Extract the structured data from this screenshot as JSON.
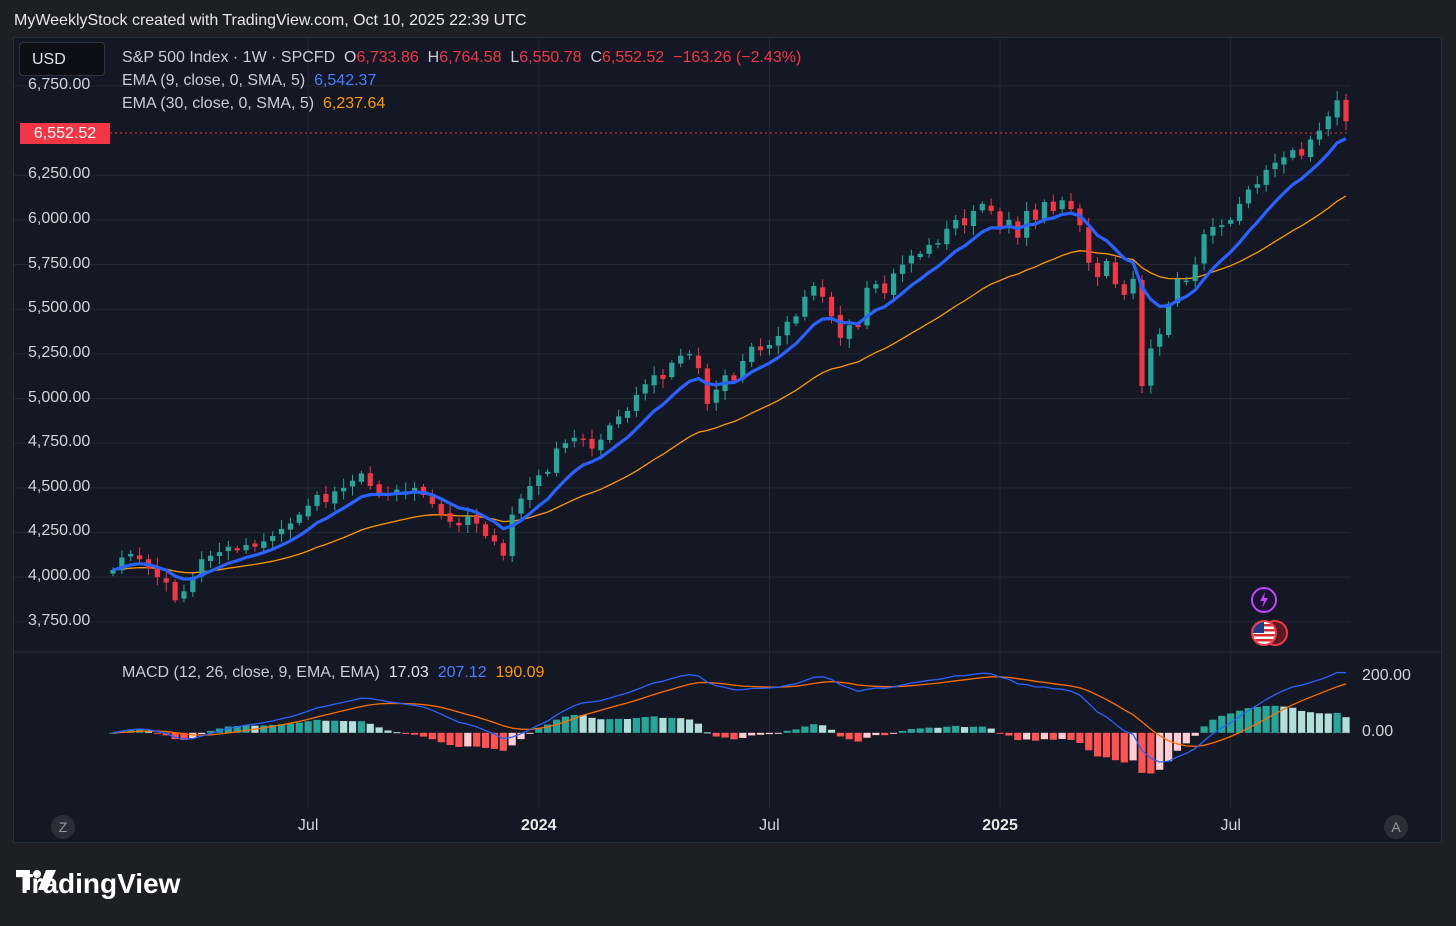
{
  "caption": "MyWeeklyStock created with TradingView.com, Oct 10, 2025 22:39 UTC",
  "currency": "USD",
  "legend": {
    "symbol": "S&P 500 Index · 1W · SPCFD",
    "o_label": "O",
    "o_value": "6,733.86",
    "h_label": "H",
    "h_value": "6,764.58",
    "l_label": "L",
    "l_value": "6,550.78",
    "c_label": "C",
    "c_value": "6,552.52",
    "change": "−163.26 (−2.43%)",
    "ema9_label": "EMA (9, close, 0, SMA, 5)",
    "ema9_value": "6,542.37",
    "ema30_label": "EMA (30, close, 0, SMA, 5)",
    "ema30_value": "6,237.64"
  },
  "macd_legend": {
    "label": "MACD (12, 26, close, 9, EMA, EMA)",
    "hist": "17.03",
    "macd": "207.12",
    "signal": "190.09"
  },
  "last_price_tag": "6,552.52",
  "colors": {
    "up": "#26a69a",
    "down": "#f23645",
    "ema9": "#2962ff",
    "ema30": "#ff9800",
    "macd": "#2962ff",
    "signal": "#ff6d00",
    "background": "#141824"
  },
  "footer": {
    "brand": "TradingView"
  },
  "icons": [
    "lightning-icon",
    "us-flag-icon",
    "tradingview-logo-icon"
  ],
  "buttons": {
    "left": "Z",
    "right": "A"
  },
  "chart_data": {
    "type": "candlestick",
    "title": "S&P 500 Index · 1W · SPCFD",
    "y_ticks": [
      "6,750.00",
      "6,250.00",
      "6,000.00",
      "5,750.00",
      "5,500.00",
      "5,250.00",
      "5,000.00",
      "4,750.00",
      "4,500.00",
      "4,250.00",
      "4,000.00",
      "3,750.00"
    ],
    "y_range": [
      3620,
      6940
    ],
    "macd_ticks": [
      "200.00",
      "0.00"
    ],
    "macd_range": [
      -240,
      260
    ],
    "x_ticks": [
      {
        "label": "Jul",
        "bold": false
      },
      {
        "label": "2024",
        "bold": true
      },
      {
        "label": "Jul",
        "bold": false
      },
      {
        "label": "2025",
        "bold": true
      },
      {
        "label": "Jul",
        "bold": false
      }
    ],
    "x_tick_week_index": [
      22,
      48,
      74,
      100,
      126
    ],
    "weeks_total": 140,
    "close": [
      4040,
      4110,
      4130,
      4100,
      4050,
      4000,
      3970,
      3870,
      3920,
      4000,
      4100,
      4120,
      4140,
      4170,
      4150,
      4180,
      4170,
      4200,
      4230,
      4270,
      4300,
      4350,
      4400,
      4460,
      4420,
      4480,
      4500,
      4540,
      4580,
      4510,
      4470,
      4460,
      4490,
      4480,
      4500,
      4460,
      4410,
      4350,
      4310,
      4290,
      4340,
      4300,
      4230,
      4200,
      4120,
      4350,
      4440,
      4510,
      4570,
      4590,
      4720,
      4750,
      4780,
      4770,
      4720,
      4770,
      4850,
      4900,
      4930,
      5020,
      5080,
      5130,
      5110,
      5200,
      5240,
      5250,
      5170,
      4970,
      5050,
      5130,
      5100,
      5210,
      5290,
      5270,
      5300,
      5350,
      5430,
      5460,
      5570,
      5630,
      5570,
      5460,
      5340,
      5410,
      5400,
      5620,
      5640,
      5590,
      5700,
      5750,
      5800,
      5810,
      5860,
      5870,
      5950,
      6000,
      5970,
      6050,
      6090,
      6050,
      5950,
      6000,
      5900,
      6050,
      6000,
      6100,
      6050,
      6110,
      6060,
      5970,
      5760,
      5680,
      5770,
      5640,
      5580,
      5670,
      5070,
      5280,
      5360,
      5530,
      5670,
      5660,
      5750,
      5920,
      5960,
      5970,
      6000,
      6090,
      6170,
      6200,
      6280,
      6320,
      6350,
      6390,
      6360,
      6450,
      6500,
      6580,
      6670,
      6552
    ],
    "ema9_last": 6542.37,
    "ema30_last": 6237.64,
    "macd_last": 207.12,
    "signal_last": 190.09,
    "hist_last": 17.03
  }
}
